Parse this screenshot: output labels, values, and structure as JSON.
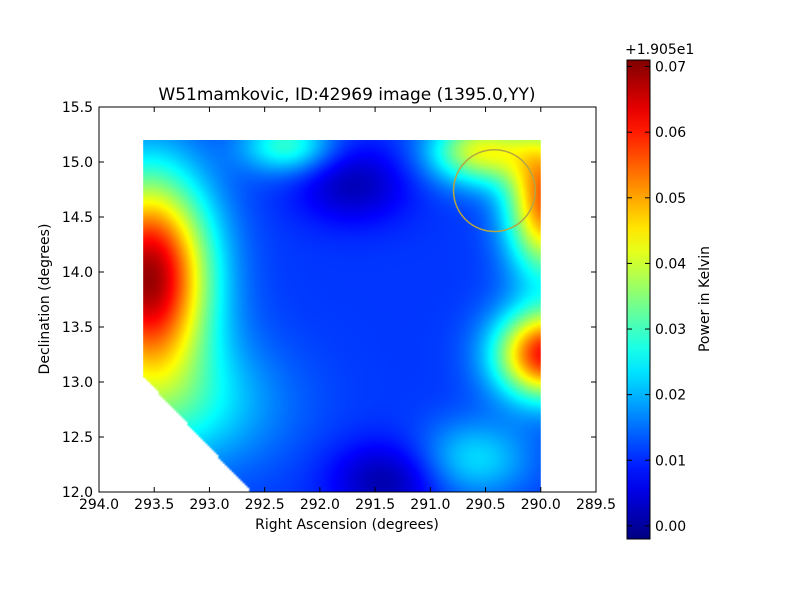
{
  "chart_data": {
    "type": "heatmap",
    "title": "W51mamkovic, ID:42969 image (1395.0,YY)",
    "xlabel": "Right Ascension (degrees)",
    "ylabel": "Declination (degrees)",
    "xlim": [
      294.0,
      289.5
    ],
    "ylim": [
      12.0,
      15.5
    ],
    "x_ticks": [
      "294.0",
      "293.5",
      "293.0",
      "292.5",
      "292.0",
      "291.5",
      "291.0",
      "290.5",
      "290.0",
      "289.5"
    ],
    "x_tick_values": [
      294.0,
      293.5,
      293.0,
      292.5,
      292.0,
      291.5,
      291.0,
      290.5,
      290.0,
      289.5
    ],
    "y_ticks": [
      "12.0",
      "12.5",
      "13.0",
      "13.5",
      "14.0",
      "14.5",
      "15.0",
      "15.5"
    ],
    "y_tick_values": [
      12.0,
      12.5,
      13.0,
      13.5,
      14.0,
      14.5,
      15.0,
      15.5
    ],
    "colorscale": "jet",
    "data_extent": {
      "ra": [
        293.6,
        290.0
      ],
      "dec": [
        12.0,
        15.2
      ]
    },
    "colorbar": {
      "label": "Power in Kelvin",
      "offset_text": "+1.905e1",
      "range": [
        -0.002,
        0.071
      ],
      "ticks": [
        "0.00",
        "0.01",
        "0.02",
        "0.03",
        "0.04",
        "0.05",
        "0.06",
        "0.07"
      ],
      "tick_values": [
        0.0,
        0.01,
        0.02,
        0.03,
        0.04,
        0.05,
        0.06,
        0.07
      ]
    },
    "features": [
      {
        "kind": "peak",
        "ra": 293.55,
        "dec": 13.95,
        "value": 0.068
      },
      {
        "kind": "peak",
        "ra": 290.0,
        "dec": 13.25,
        "value": 0.062
      },
      {
        "kind": "peak",
        "ra": 290.0,
        "dec": 14.6,
        "value": 0.055
      },
      {
        "kind": "trough",
        "ra": 291.4,
        "dec": 12.15,
        "value": 0.0
      },
      {
        "kind": "trough",
        "ra": 291.7,
        "dec": 14.8,
        "value": 0.002
      }
    ],
    "overlay_circle": {
      "ra": 290.42,
      "dec": 14.74,
      "radius_deg": 0.37,
      "color": "#b5a642"
    }
  }
}
